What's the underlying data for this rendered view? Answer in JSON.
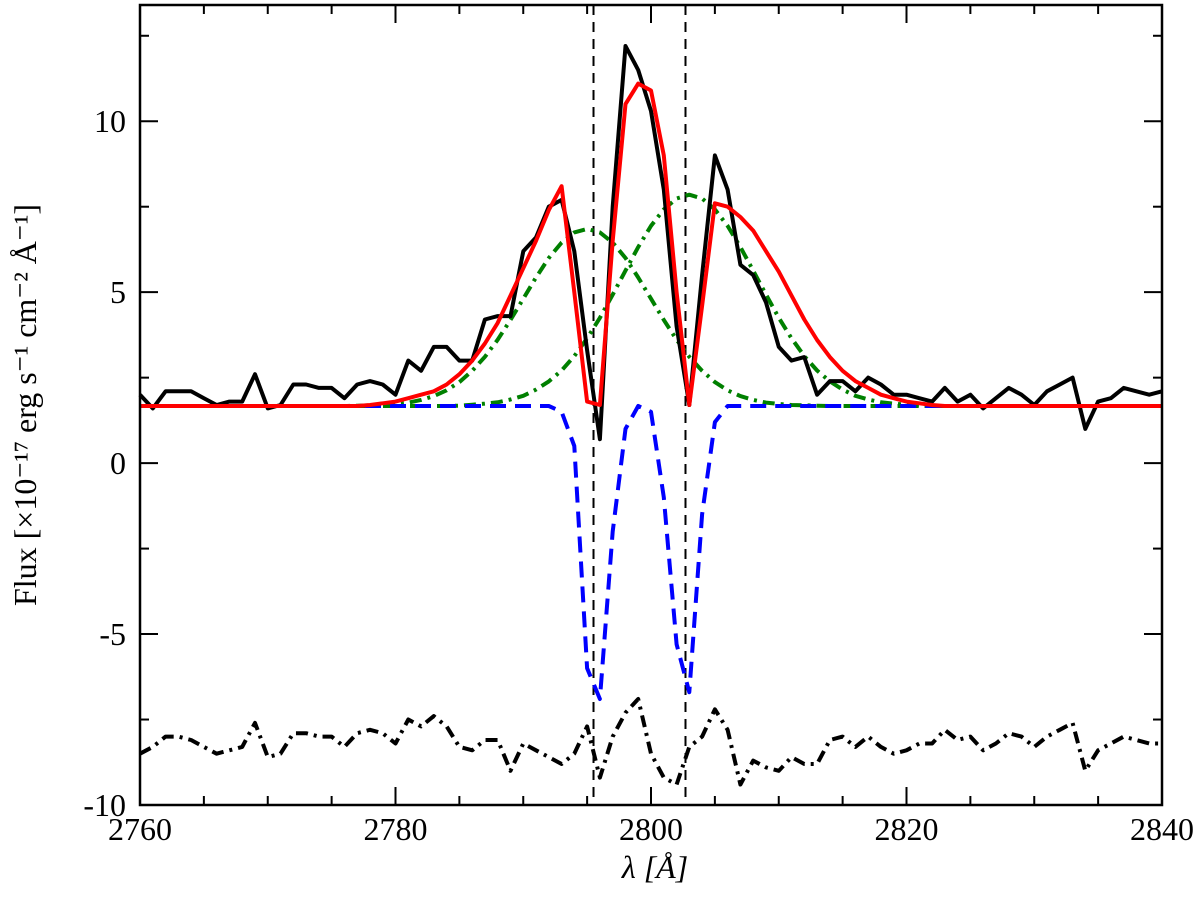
{
  "chart_data": {
    "type": "line",
    "xlabel": "λ [Å]",
    "ylabel": "Flux [×10⁻¹⁷ erg s⁻¹ cm⁻² Å⁻¹]",
    "xlim": [
      2760,
      2840
    ],
    "xticks": [
      2760,
      2780,
      2800,
      2820,
      2840
    ],
    "xminorticks": [
      2765,
      2770,
      2775,
      2785,
      2790,
      2795,
      2805,
      2810,
      2815,
      2825,
      2830,
      2835
    ],
    "ylim": [
      -10,
      13.4
    ],
    "yticks": [
      -10,
      -5,
      0,
      5,
      10
    ],
    "yminorticks": [
      -7.5,
      -2.5,
      2.5,
      7.5,
      12.5
    ],
    "vlines": [
      2795.5,
      2802.7
    ],
    "x": [
      2760,
      2761,
      2762,
      2763,
      2764,
      2765,
      2766,
      2767,
      2768,
      2769,
      2770,
      2771,
      2772,
      2773,
      2774,
      2775,
      2776,
      2777,
      2778,
      2779,
      2780,
      2781,
      2782,
      2783,
      2784,
      2785,
      2786,
      2787,
      2788,
      2789,
      2790,
      2791,
      2792,
      2793,
      2794,
      2795,
      2796,
      2797,
      2798,
      2799,
      2800,
      2801,
      2802,
      2803,
      2804,
      2805,
      2806,
      2807,
      2808,
      2809,
      2810,
      2811,
      2812,
      2813,
      2814,
      2815,
      2816,
      2817,
      2818,
      2819,
      2820,
      2821,
      2822,
      2823,
      2824,
      2825,
      2826,
      2827,
      2828,
      2829,
      2830,
      2831,
      2832,
      2833,
      2834,
      2835,
      2836,
      2837,
      2838,
      2839,
      2840
    ],
    "series": [
      {
        "color": "#008000",
        "dash": "dashdot",
        "values": [
          1.67,
          1.67,
          1.67,
          1.67,
          1.67,
          1.67,
          1.67,
          1.67,
          1.67,
          1.67,
          1.67,
          1.67,
          1.67,
          1.67,
          1.67,
          1.67,
          1.67,
          1.68,
          1.69,
          1.7,
          1.73,
          1.77,
          1.85,
          1.96,
          2.13,
          2.37,
          2.7,
          3.11,
          3.61,
          4.19,
          4.81,
          5.43,
          6.0,
          6.45,
          6.75,
          6.85,
          6.75,
          6.45,
          6.0,
          5.43,
          4.81,
          4.19,
          3.61,
          3.11,
          2.7,
          2.37,
          2.13,
          1.96,
          1.85,
          1.77,
          1.73,
          1.7,
          1.69,
          1.68,
          1.67,
          1.67,
          1.67,
          1.67,
          1.67,
          1.67,
          1.67,
          1.67,
          1.67,
          1.67,
          1.67,
          1.67,
          1.67,
          1.67,
          1.67,
          1.67,
          1.67,
          1.67,
          1.67,
          1.67,
          1.67,
          1.67,
          1.67,
          1.67,
          1.67,
          1.67,
          1.67
        ]
      },
      {
        "color": "#008000",
        "dash": "dashdot",
        "values": [
          1.67,
          1.67,
          1.67,
          1.67,
          1.67,
          1.67,
          1.67,
          1.67,
          1.67,
          1.67,
          1.67,
          1.67,
          1.67,
          1.67,
          1.67,
          1.67,
          1.67,
          1.67,
          1.67,
          1.67,
          1.67,
          1.67,
          1.67,
          1.67,
          1.67,
          1.68,
          1.71,
          1.74,
          1.78,
          1.86,
          1.97,
          2.15,
          2.39,
          2.71,
          3.13,
          3.65,
          4.25,
          4.93,
          5.63,
          6.32,
          6.94,
          7.42,
          7.74,
          7.85,
          7.74,
          7.42,
          6.94,
          6.32,
          5.63,
          4.93,
          4.25,
          3.65,
          3.13,
          2.71,
          2.39,
          2.15,
          1.97,
          1.86,
          1.78,
          1.74,
          1.71,
          1.68,
          1.67,
          1.67,
          1.67,
          1.67,
          1.67,
          1.67,
          1.67,
          1.67,
          1.67,
          1.67,
          1.67,
          1.67,
          1.67,
          1.67,
          1.67,
          1.67,
          1.67,
          1.67,
          1.67
        ]
      },
      {
        "color": "#0000ff",
        "dash": "dashed",
        "values": [
          1.67,
          1.67,
          1.67,
          1.67,
          1.67,
          1.67,
          1.67,
          1.67,
          1.67,
          1.67,
          1.67,
          1.67,
          1.67,
          1.67,
          1.67,
          1.67,
          1.67,
          1.67,
          1.67,
          1.67,
          1.67,
          1.67,
          1.67,
          1.67,
          1.67,
          1.67,
          1.67,
          1.67,
          1.67,
          1.67,
          1.67,
          1.67,
          1.67,
          1.5,
          0.5,
          -6.0,
          -6.9,
          -2.0,
          1.0,
          1.67,
          1.5,
          -1.0,
          -5.3,
          -6.7,
          -1.5,
          1.2,
          1.67,
          1.67,
          1.67,
          1.67,
          1.67,
          1.67,
          1.67,
          1.67,
          1.67,
          1.67,
          1.67,
          1.67,
          1.67,
          1.67,
          1.67,
          1.67,
          1.67,
          1.67,
          1.67,
          1.67,
          1.67,
          1.67,
          1.67,
          1.67,
          1.67,
          1.67,
          1.67,
          1.67,
          1.67,
          1.67,
          1.67,
          1.67,
          1.67,
          1.67,
          1.67
        ]
      },
      {
        "color": "#000000",
        "dash": "solid",
        "values": [
          2.0,
          1.6,
          2.1,
          2.1,
          2.1,
          1.9,
          1.7,
          1.8,
          1.8,
          2.6,
          1.6,
          1.7,
          2.3,
          2.3,
          2.2,
          2.2,
          1.9,
          2.3,
          2.4,
          2.3,
          2.0,
          3.0,
          2.7,
          3.4,
          3.4,
          3.0,
          3.0,
          4.2,
          4.3,
          4.3,
          6.2,
          6.6,
          7.5,
          7.7,
          6.2,
          3.3,
          0.7,
          7.5,
          12.2,
          11.5,
          10.3,
          8.0,
          4.0,
          1.7,
          5.5,
          9.0,
          8.0,
          5.8,
          5.5,
          4.7,
          3.4,
          3.0,
          3.1,
          2.0,
          2.4,
          2.4,
          2.1,
          2.5,
          2.3,
          2.0,
          2.0,
          1.9,
          1.8,
          2.2,
          1.8,
          2.0,
          1.6,
          1.9,
          2.2,
          2.0,
          1.7,
          2.1,
          2.3,
          2.5,
          1.0,
          1.8,
          1.9,
          2.2,
          2.1,
          2.0,
          2.1
        ]
      },
      {
        "color": "#ff0000",
        "dash": "solid",
        "values": [
          1.67,
          1.67,
          1.67,
          1.67,
          1.67,
          1.67,
          1.67,
          1.67,
          1.67,
          1.67,
          1.67,
          1.67,
          1.67,
          1.67,
          1.67,
          1.67,
          1.67,
          1.67,
          1.7,
          1.75,
          1.8,
          1.9,
          2.0,
          2.1,
          2.3,
          2.6,
          3.0,
          3.5,
          4.1,
          4.9,
          5.7,
          6.5,
          7.4,
          8.1,
          5.0,
          1.8,
          1.7,
          6.5,
          10.5,
          11.1,
          10.9,
          9.0,
          5.0,
          1.7,
          4.6,
          7.6,
          7.5,
          7.2,
          6.8,
          6.2,
          5.6,
          4.9,
          4.2,
          3.6,
          3.1,
          2.7,
          2.4,
          2.2,
          2.0,
          1.9,
          1.8,
          1.75,
          1.7,
          1.67,
          1.67,
          1.67,
          1.67,
          1.67,
          1.67,
          1.67,
          1.67,
          1.67,
          1.67,
          1.67,
          1.67,
          1.67,
          1.67,
          1.67,
          1.67,
          1.67,
          1.67
        ]
      },
      {
        "color": "#000000",
        "dash": "dashdot",
        "values": [
          -8.5,
          -8.3,
          -8.0,
          -8.0,
          -8.1,
          -8.3,
          -8.5,
          -8.4,
          -8.3,
          -7.6,
          -8.6,
          -8.5,
          -7.9,
          -7.9,
          -8.0,
          -8.0,
          -8.3,
          -7.9,
          -7.8,
          -7.9,
          -8.2,
          -7.5,
          -7.7,
          -7.4,
          -7.7,
          -8.3,
          -8.4,
          -8.1,
          -8.1,
          -9.0,
          -8.2,
          -8.4,
          -8.6,
          -8.8,
          -8.5,
          -7.7,
          -9.2,
          -8.0,
          -7.3,
          -6.9,
          -8.5,
          -9.2,
          -9.4,
          -8.3,
          -8.0,
          -7.2,
          -7.8,
          -9.4,
          -8.7,
          -8.9,
          -9.0,
          -8.6,
          -8.8,
          -8.8,
          -8.1,
          -8.0,
          -8.3,
          -8.0,
          -8.3,
          -8.5,
          -8.4,
          -8.2,
          -8.2,
          -7.8,
          -8.1,
          -8.0,
          -8.4,
          -8.2,
          -7.9,
          -8.0,
          -8.3,
          -8.0,
          -7.8,
          -7.6,
          -9.0,
          -8.4,
          -8.2,
          -8.0,
          -8.1,
          -8.2,
          -8.2
        ]
      }
    ]
  }
}
